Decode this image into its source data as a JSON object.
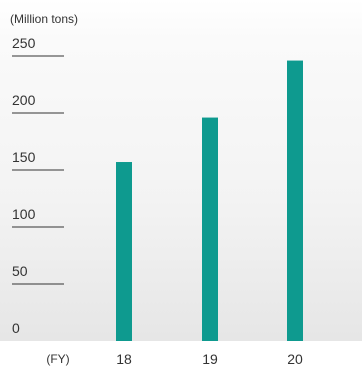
{
  "chart_data": {
    "type": "bar",
    "unit_label": "(Million tons)",
    "x_prefix_label": "(FY)",
    "categories": [
      "18",
      "19",
      "20"
    ],
    "values": [
      157,
      196,
      246
    ],
    "yticks": [
      "250",
      "200",
      "150",
      "100",
      "50",
      "0"
    ],
    "ylim": [
      0,
      250
    ],
    "bar_color": "#0e9a8f",
    "grid": false,
    "legend": "none"
  }
}
